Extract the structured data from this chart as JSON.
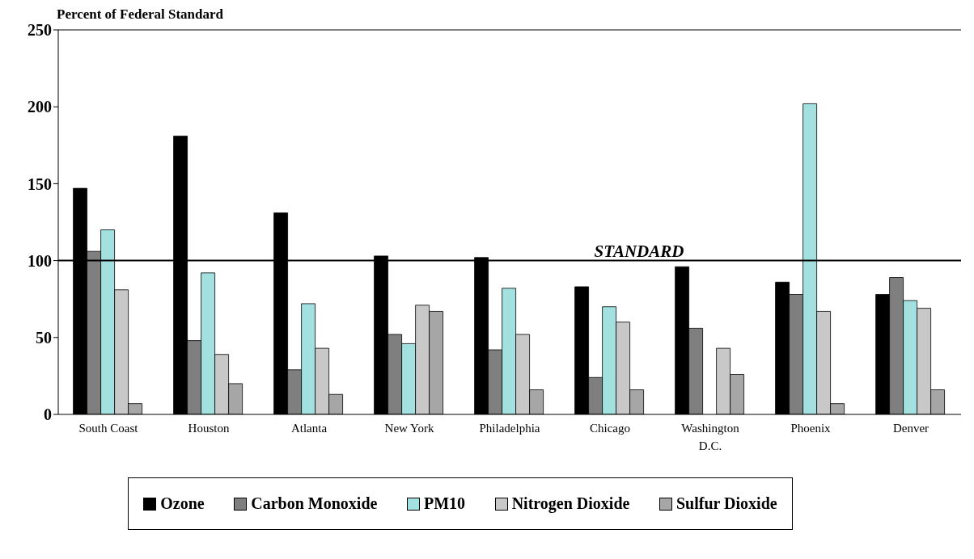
{
  "chart_data": {
    "type": "bar",
    "title": "Percent of Federal Standard",
    "categories": [
      "South Coast",
      "Houston",
      "Atlanta",
      "New York",
      "Philadelphia",
      "Chicago",
      "Washington D.C.",
      "Phoenix",
      "Denver"
    ],
    "series": [
      {
        "name": "Ozone",
        "color": "#000000",
        "values": [
          147,
          181,
          131,
          103,
          102,
          83,
          96,
          86,
          78
        ]
      },
      {
        "name": "Carbon Monoxide",
        "color": "#7f7f7f",
        "values": [
          106,
          48,
          29,
          52,
          42,
          24,
          56,
          78,
          89
        ]
      },
      {
        "name": "PM10",
        "color": "#a3e0e0",
        "values": [
          120,
          92,
          72,
          46,
          82,
          70,
          null,
          202,
          74
        ]
      },
      {
        "name": "Nitrogen Dioxide",
        "color": "#c8c8c8",
        "values": [
          81,
          39,
          43,
          71,
          52,
          60,
          43,
          67,
          69
        ]
      },
      {
        "name": "Sulfur Dioxide",
        "color": "#a6a6a6",
        "values": [
          7,
          20,
          13,
          67,
          16,
          16,
          26,
          7,
          16
        ]
      }
    ],
    "ylim": [
      0,
      250
    ],
    "yticks": [
      0,
      50,
      100,
      150,
      200,
      250
    ],
    "ref_lines": [
      {
        "axis": "y",
        "value": 100,
        "label": "STANDARD",
        "color": "#000000"
      }
    ],
    "legend": "bottom"
  }
}
